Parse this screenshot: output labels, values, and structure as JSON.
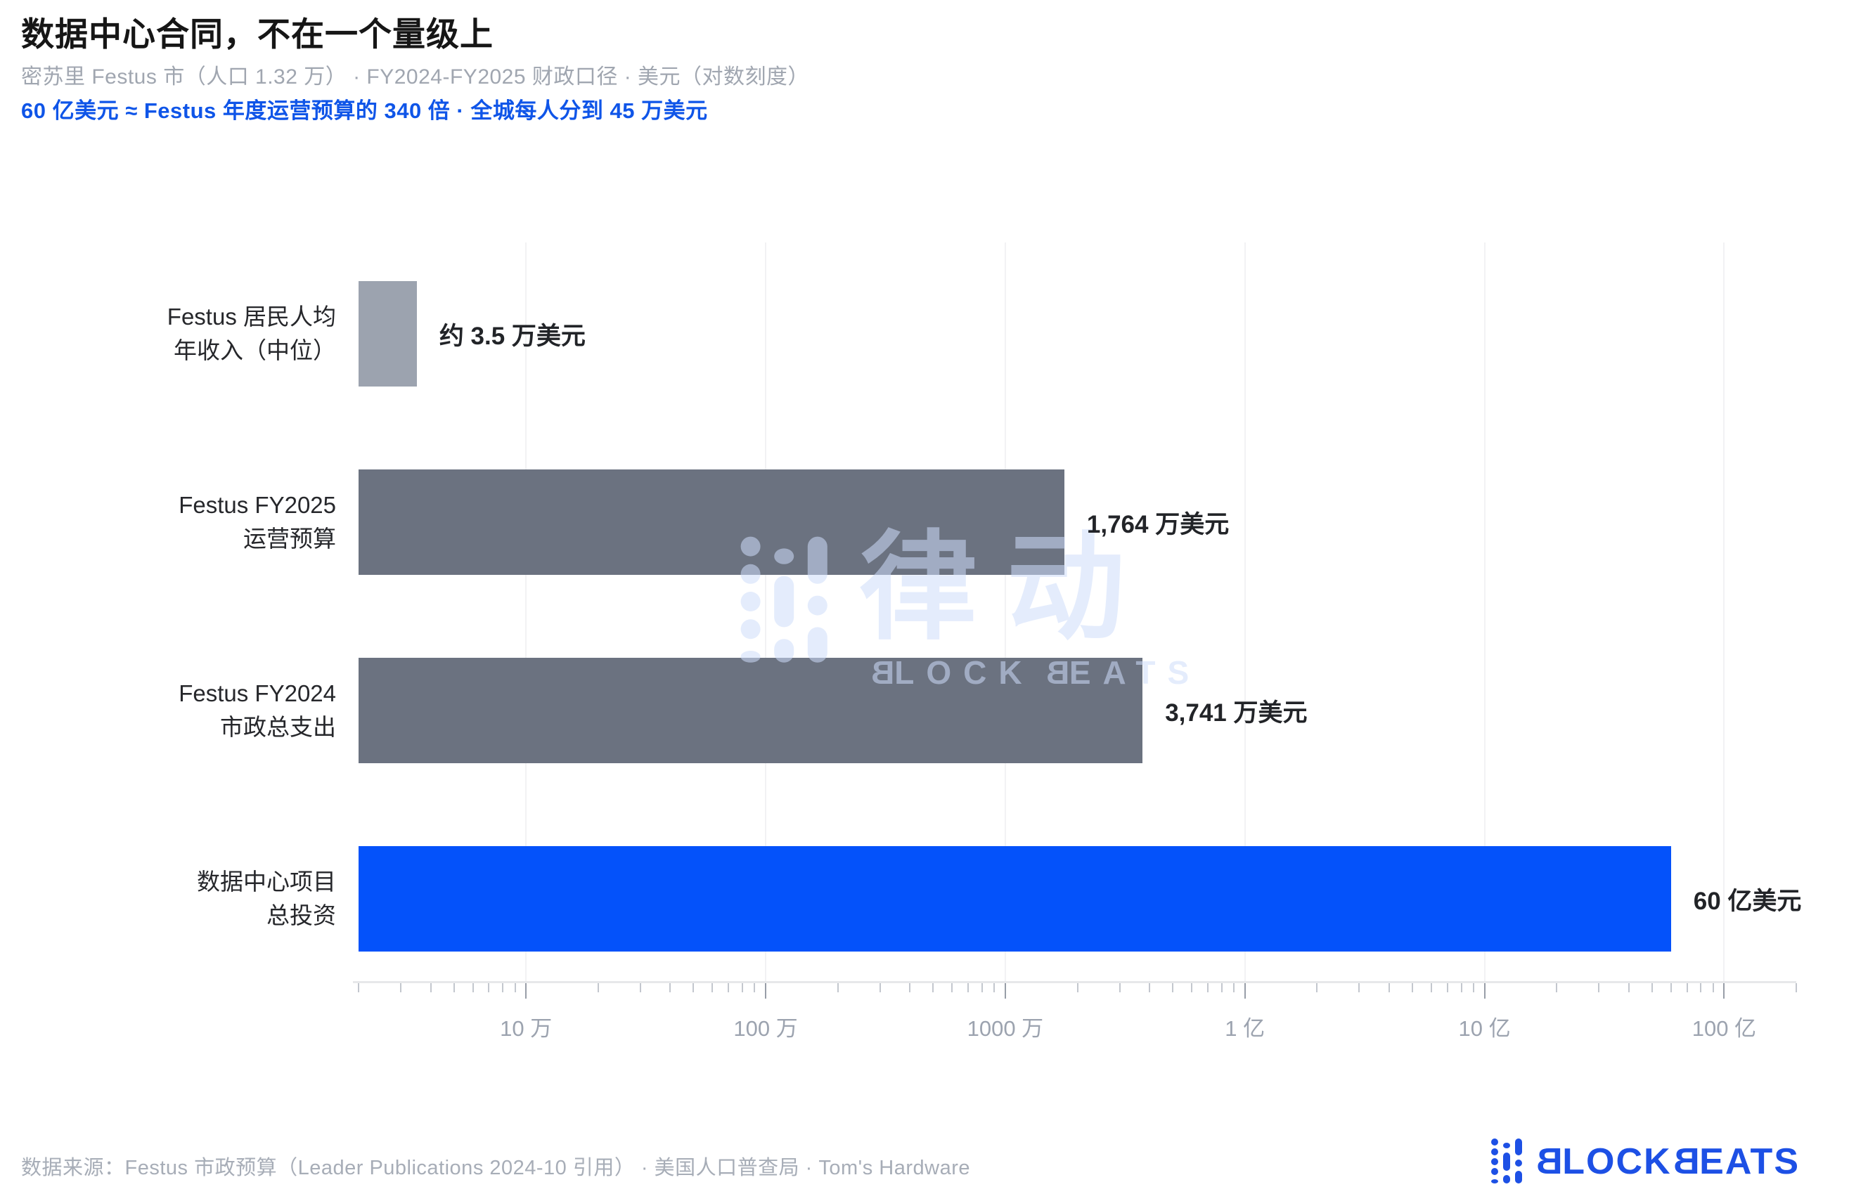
{
  "header": {
    "title": "数据中心合同，不在一个量级上",
    "subtitle": "密苏里 Festus 市（人口 1.32 万） · FY2024-FY2025 财政口径 · 美元（对数刻度）",
    "highlight": "60 亿美元 ≈ Festus 年度运营预算的 340 倍 · 全城每人分到 45 万美元"
  },
  "chart_data": {
    "type": "bar",
    "orientation": "horizontal",
    "x_scale": "log10",
    "x_domain": [
      20000,
      20000000000
    ],
    "title": "数据中心合同，不在一个量级上",
    "xlabel": "美元（对数刻度）",
    "ylabel": "",
    "grid": "vertical-major-only",
    "categories": [
      [
        "Festus 居民人均",
        "年收入（中位）"
      ],
      [
        "Festus FY2025",
        "运营预算"
      ],
      [
        "Festus FY2024",
        "市政总支出"
      ],
      [
        "数据中心项目",
        "总投资"
      ]
    ],
    "values": [
      35000,
      17640000,
      37410000,
      6000000000
    ],
    "value_labels": [
      "约 3.5 万美元",
      "1,764 万美元",
      "3,741 万美元",
      "60 亿美元"
    ],
    "bar_colors": [
      "#9CA3AF",
      "#6B7280",
      "#6B7280",
      "#0452FA"
    ],
    "x_ticks": [
      {
        "label": "10 万",
        "value": 100000
      },
      {
        "label": "100 万",
        "value": 1000000
      },
      {
        "label": "1000 万",
        "value": 10000000
      },
      {
        "label": "1 亿",
        "value": 100000000
      },
      {
        "label": "10 亿",
        "value": 1000000000
      },
      {
        "label": "100 亿",
        "value": 10000000000
      }
    ]
  },
  "watermark": {
    "cn": "律动",
    "en": "BLOCKBEATS"
  },
  "footer": {
    "source": "数据来源：Festus 市政预算（Leader Publications 2024-10 引用） · 美国人口普查局 · Tom's Hardware",
    "brand": "BLOCKBEATS"
  },
  "colors": {
    "accent_blue": "#0452FA",
    "highlight_text_blue": "#0F55E8",
    "brand_blue": "#1D50E5",
    "gray_bar": "#6B7280",
    "light_gray_bar": "#9CA3AF",
    "muted_text": "#A0A6B0"
  }
}
